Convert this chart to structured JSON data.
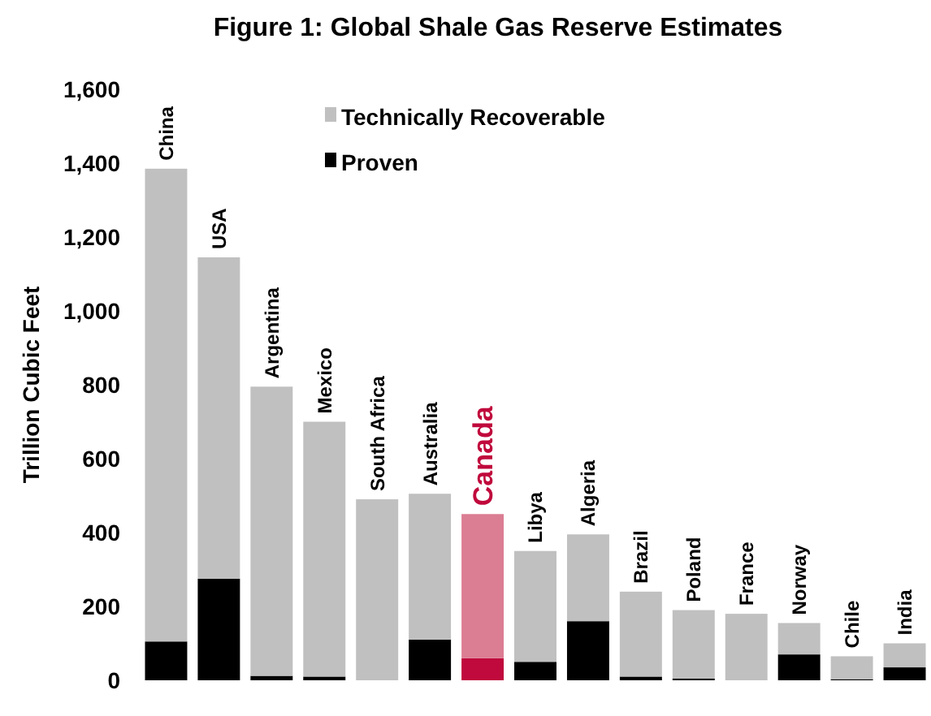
{
  "chart_data": {
    "type": "bar",
    "title": "Figure 1: Global Shale Gas Reserve Estimates",
    "ylabel": "Trillion Cubic Feet",
    "categories": [
      "China",
      "USA",
      "Argentina",
      "Mexico",
      "South Africa",
      "Australia",
      "Canada",
      "Libya",
      "Algeria",
      "Brazil",
      "Poland",
      "France",
      "Norway",
      "Chile",
      "India"
    ],
    "stacked": true,
    "series": [
      {
        "name": "Proven",
        "color": "#000000",
        "colors": [
          "#000000",
          "#000000",
          "#000000",
          "#000000",
          "#000000",
          "#000000",
          "#c0093c",
          "#000000",
          "#000000",
          "#000000",
          "#000000",
          "#000000",
          "#000000",
          "#000000",
          "#000000"
        ],
        "values": [
          105,
          275,
          12,
          10,
          0,
          110,
          60,
          50,
          160,
          10,
          5,
          0,
          70,
          3,
          35
        ]
      },
      {
        "name": "Technically Recoverable",
        "color": "#c0c0c0",
        "colors": [
          "#c0c0c0",
          "#c0c0c0",
          "#c0c0c0",
          "#c0c0c0",
          "#c0c0c0",
          "#c0c0c0",
          "#db7d93",
          "#c0c0c0",
          "#c0c0c0",
          "#c0c0c0",
          "#c0c0c0",
          "#c0c0c0",
          "#c0c0c0",
          "#c0c0c0",
          "#c0c0c0"
        ],
        "values": [
          1280,
          870,
          783,
          690,
          490,
          395,
          390,
          300,
          235,
          230,
          185,
          180,
          85,
          62,
          65
        ]
      }
    ],
    "ylim": [
      0,
      1600
    ],
    "yticks": [
      {
        "value": 0,
        "label": "0"
      },
      {
        "value": 200,
        "label": "200"
      },
      {
        "value": 400,
        "label": "400"
      },
      {
        "value": 600,
        "label": "600"
      },
      {
        "value": 800,
        "label": "800"
      },
      {
        "value": 1000,
        "label": "1,000"
      },
      {
        "value": 1200,
        "label": "1,200"
      },
      {
        "value": 1400,
        "label": "1,400"
      },
      {
        "value": 1600,
        "label": "1,600"
      }
    ],
    "legend": "top left",
    "grid": false
  }
}
